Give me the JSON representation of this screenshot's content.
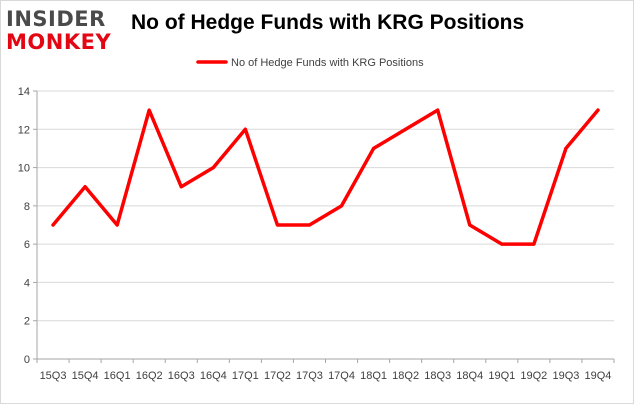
{
  "logo": {
    "line1": "INSIDER",
    "line2": "MONKEY"
  },
  "colors": {
    "series": "#ff0000",
    "logo_gray": "#4a4a4a",
    "logo_red": "#e30613",
    "grid": "#d9d9d9"
  },
  "chart_data": {
    "type": "line",
    "title": "No of Hedge Funds with KRG Positions",
    "xlabel": "",
    "ylabel": "",
    "categories": [
      "15Q3",
      "15Q4",
      "16Q1",
      "16Q2",
      "16Q3",
      "16Q4",
      "17Q1",
      "17Q2",
      "17Q3",
      "17Q4",
      "18Q1",
      "18Q2",
      "18Q3",
      "18Q4",
      "19Q1",
      "19Q2",
      "19Q3",
      "19Q4"
    ],
    "series": [
      {
        "name": "No of Hedge Funds with KRG Positions",
        "values": [
          7,
          9,
          7,
          13,
          9,
          10,
          12,
          7,
          7,
          8,
          11,
          12,
          13,
          7,
          6,
          6,
          11,
          13
        ]
      }
    ],
    "ylim": [
      0,
      14
    ],
    "yticks": [
      0,
      2,
      4,
      6,
      8,
      10,
      12,
      14
    ],
    "grid": true,
    "legend": "top-center"
  }
}
